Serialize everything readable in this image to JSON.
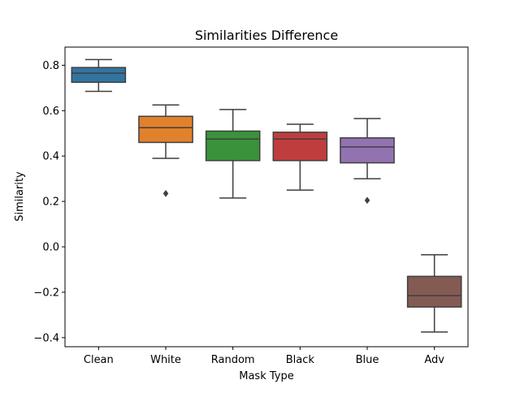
{
  "chart_data": {
    "type": "box",
    "title": "Similarities Difference",
    "xlabel": "Mask Type",
    "ylabel": "Similarity",
    "ylim": [
      -0.44,
      0.88
    ],
    "yticks": [
      {
        "value": -0.4,
        "label": "−0.4"
      },
      {
        "value": -0.2,
        "label": "−0.2"
      },
      {
        "value": 0.0,
        "label": "0.0"
      },
      {
        "value": 0.2,
        "label": "0.2"
      },
      {
        "value": 0.4,
        "label": "0.4"
      },
      {
        "value": 0.6,
        "label": "0.6"
      },
      {
        "value": 0.8,
        "label": "0.8"
      }
    ],
    "grid": false,
    "categories": [
      "Clean",
      "White",
      "Random",
      "Black",
      "Blue",
      "Adv"
    ],
    "boxes": [
      {
        "category": "Clean",
        "color": "#3274a1",
        "whislo": 0.685,
        "q1": 0.725,
        "median": 0.765,
        "q3": 0.79,
        "whishi": 0.825,
        "fliers": []
      },
      {
        "category": "White",
        "color": "#e1812c",
        "whislo": 0.39,
        "q1": 0.46,
        "median": 0.525,
        "q3": 0.575,
        "whishi": 0.625,
        "fliers": [
          0.235
        ]
      },
      {
        "category": "Random",
        "color": "#3a923a",
        "whislo": 0.215,
        "q1": 0.38,
        "median": 0.475,
        "q3": 0.51,
        "whishi": 0.605,
        "fliers": []
      },
      {
        "category": "Black",
        "color": "#c03d3e",
        "whislo": 0.25,
        "q1": 0.38,
        "median": 0.475,
        "q3": 0.505,
        "whishi": 0.54,
        "fliers": []
      },
      {
        "category": "Blue",
        "color": "#9372b2",
        "whislo": 0.3,
        "q1": 0.37,
        "median": 0.44,
        "q3": 0.48,
        "whishi": 0.565,
        "fliers": [
          0.205
        ]
      },
      {
        "category": "Adv",
        "color": "#845b53",
        "whislo": -0.375,
        "q1": -0.265,
        "median": -0.215,
        "q3": -0.13,
        "whishi": -0.035,
        "fliers": []
      }
    ]
  }
}
